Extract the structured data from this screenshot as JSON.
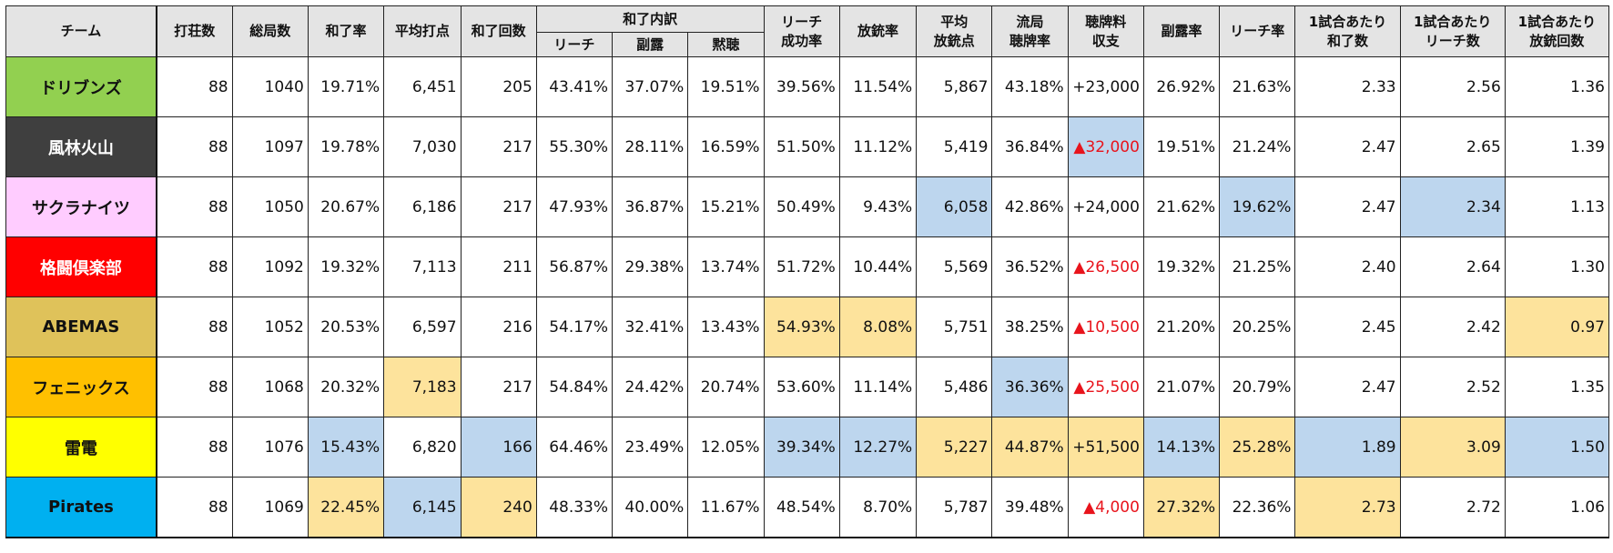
{
  "headers": {
    "team": "チーム",
    "games": "打荘数",
    "rounds": "総局数",
    "win_rate": "和了率",
    "avg_win": "平均打点",
    "win_count": "和了回数",
    "win_breakdown": "和了内訳",
    "breakdown_riichi": "リーチ",
    "breakdown_furo": "副露",
    "breakdown_dama": "黙聴",
    "riichi_success": [
      "リーチ",
      "成功率"
    ],
    "deal_in_rate": "放銃率",
    "avg_deal_in": [
      "平均",
      "放銃点"
    ],
    "draw_tenpai": [
      "流局",
      "聴牌率"
    ],
    "tenpai_payment": [
      "聴牌料",
      "収支"
    ],
    "furo_rate": "副露率",
    "riichi_rate": "リーチ率",
    "per_game_wins": [
      "1試合あたり",
      "和了数"
    ],
    "per_game_riichi": [
      "1試合あたり",
      "リーチ数"
    ],
    "per_game_deal_in": [
      "1試合あたり",
      "放銃回数"
    ]
  },
  "rows": [
    {
      "team": "ドリブンズ",
      "team_bg": "#92d050",
      "team_color": "#111111",
      "cells": [
        "88",
        "1040",
        "19.71%",
        "6,451",
        "205",
        "43.41%",
        "37.07%",
        "19.51%",
        "39.56%",
        "11.54%",
        "5,867",
        "43.18%",
        "+23,000",
        "26.92%",
        "21.63%",
        "2.33",
        "2.56",
        "1.36"
      ],
      "hl": [
        "",
        "",
        "",
        "",
        "",
        "",
        "",
        "",
        "",
        "",
        "",
        "",
        "",
        "",
        "",
        "",
        "",
        ""
      ]
    },
    {
      "team": "風林火山",
      "team_bg": "#3f3f3f",
      "team_color": "#ffffff",
      "cells": [
        "88",
        "1097",
        "19.78%",
        "7,030",
        "217",
        "55.30%",
        "28.11%",
        "16.59%",
        "51.50%",
        "11.12%",
        "5,419",
        "36.84%",
        "▲32,000",
        "19.51%",
        "21.24%",
        "2.47",
        "2.65",
        "1.39"
      ],
      "hl": [
        "",
        "",
        "",
        "",
        "",
        "",
        "",
        "",
        "",
        "",
        "",
        "",
        "b",
        "",
        "",
        "",
        "",
        ""
      ]
    },
    {
      "team": "サクラナイツ",
      "team_bg": "#ffccff",
      "team_color": "#111111",
      "cells": [
        "88",
        "1050",
        "20.67%",
        "6,186",
        "217",
        "47.93%",
        "36.87%",
        "15.21%",
        "50.49%",
        "9.43%",
        "6,058",
        "42.86%",
        "+24,000",
        "21.62%",
        "19.62%",
        "2.47",
        "2.34",
        "1.13"
      ],
      "hl": [
        "",
        "",
        "",
        "",
        "",
        "",
        "",
        "",
        "",
        "",
        "b",
        "",
        "",
        "",
        "b",
        "",
        "b",
        ""
      ]
    },
    {
      "team": "格闘倶楽部",
      "team_bg": "#ff0000",
      "team_color": "#ffffff",
      "cells": [
        "88",
        "1092",
        "19.32%",
        "7,113",
        "211",
        "56.87%",
        "29.38%",
        "13.74%",
        "51.72%",
        "10.44%",
        "5,569",
        "36.52%",
        "▲26,500",
        "19.32%",
        "21.25%",
        "2.40",
        "2.64",
        "1.30"
      ],
      "hl": [
        "",
        "",
        "",
        "",
        "",
        "",
        "",
        "",
        "",
        "",
        "",
        "",
        "",
        "",
        "",
        "",
        "",
        ""
      ]
    },
    {
      "team": "ABEMAS",
      "team_bg": "#dfc25a",
      "team_color": "#111111",
      "cells": [
        "88",
        "1052",
        "20.53%",
        "6,597",
        "216",
        "54.17%",
        "32.41%",
        "13.43%",
        "54.93%",
        "8.08%",
        "5,751",
        "38.25%",
        "▲10,500",
        "21.20%",
        "20.25%",
        "2.45",
        "2.42",
        "0.97"
      ],
      "hl": [
        "",
        "",
        "",
        "",
        "",
        "",
        "",
        "",
        "y",
        "y",
        "",
        "",
        "",
        "",
        "",
        "",
        "",
        "y"
      ]
    },
    {
      "team": "フェニックス",
      "team_bg": "#ffc000",
      "team_color": "#111111",
      "cells": [
        "88",
        "1068",
        "20.32%",
        "7,183",
        "217",
        "54.84%",
        "24.42%",
        "20.74%",
        "53.60%",
        "11.14%",
        "5,486",
        "36.36%",
        "▲25,500",
        "21.07%",
        "20.79%",
        "2.47",
        "2.52",
        "1.35"
      ],
      "hl": [
        "",
        "",
        "",
        "y",
        "",
        "",
        "",
        "",
        "",
        "",
        "",
        "b",
        "",
        "",
        "",
        "",
        "",
        ""
      ]
    },
    {
      "team": "雷電",
      "team_bg": "#ffff00",
      "team_color": "#111111",
      "cells": [
        "88",
        "1076",
        "15.43%",
        "6,820",
        "166",
        "64.46%",
        "23.49%",
        "12.05%",
        "39.34%",
        "12.27%",
        "5,227",
        "44.87%",
        "+51,500",
        "14.13%",
        "25.28%",
        "1.89",
        "3.09",
        "1.50"
      ],
      "hl": [
        "",
        "",
        "b",
        "",
        "b",
        "",
        "",
        "",
        "b",
        "b",
        "y",
        "y",
        "y",
        "b",
        "y",
        "b",
        "y",
        "b"
      ]
    },
    {
      "team": "Pirates",
      "team_bg": "#00b0f0",
      "team_color": "#111111",
      "cells": [
        "88",
        "1069",
        "22.45%",
        "6,145",
        "240",
        "48.33%",
        "40.00%",
        "11.67%",
        "48.54%",
        "8.70%",
        "5,787",
        "39.48%",
        "▲4,000",
        "27.32%",
        "22.36%",
        "2.73",
        "2.72",
        "1.06"
      ],
      "hl": [
        "",
        "",
        "y",
        "b",
        "y",
        "",
        "",
        "",
        "",
        "",
        "",
        "",
        "",
        "y",
        "",
        "y",
        "",
        ""
      ]
    }
  ],
  "colors": {
    "highlight_yellow": "#fde39c",
    "highlight_blue": "#bdd6ee",
    "negative": "#e8141c",
    "header_bg": "#e4e4e4"
  }
}
